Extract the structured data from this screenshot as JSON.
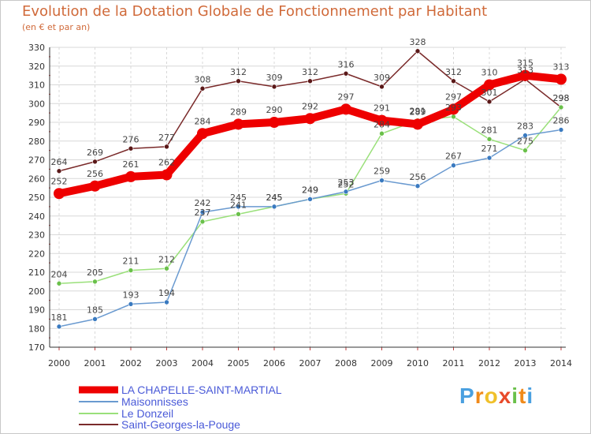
{
  "title": "Evolution de la Dotation Globale de Fonctionnement par Habitant",
  "subtitle": "(en € et par an)",
  "logo": {
    "text": "Proxiti",
    "letters": [
      "P",
      "r",
      "o",
      "x",
      "i",
      "t",
      "i"
    ],
    "colors": [
      "#4aa0e0",
      "#f08a1a",
      "#f0c02a",
      "#e84a2a",
      "#6ac04a",
      "#f08a1a",
      "#4aa0e0"
    ]
  },
  "chart_data": {
    "type": "line",
    "title": "Evolution de la Dotation Globale de Fonctionnement par Habitant",
    "subtitle": "(en € et par an)",
    "xlabel": "",
    "ylabel": "",
    "grid": true,
    "ylim": [
      170,
      330
    ],
    "yticks": [
      "170",
      "180",
      "190",
      "200",
      "210",
      "220",
      "230",
      "240",
      "250",
      "260",
      "270",
      "280",
      "290",
      "300",
      "310",
      "320",
      "330"
    ],
    "categories": [
      "2000",
      "2001",
      "2002",
      "2003",
      "2004",
      "2005",
      "2006",
      "2007",
      "2008",
      "2009",
      "2010",
      "2011",
      "2012",
      "2013",
      "2014"
    ],
    "series": [
      {
        "name": "Saint-Georges-la-Pouge",
        "color": "#7a2a2a",
        "dot": "#5a1818",
        "values": [
          264,
          269,
          276,
          277,
          308,
          312,
          309,
          312,
          316,
          309,
          328,
          312,
          301,
          313,
          298
        ],
        "labels": [
          "264",
          "269",
          "276",
          "277",
          "308",
          "312",
          "309",
          "312",
          "316",
          "309",
          "328",
          "312",
          "301",
          "313",
          "298"
        ]
      },
      {
        "name": "Le Donzeil",
        "color": "#9ae07a",
        "dot": "#6ac04a",
        "values": [
          204,
          205,
          211,
          212,
          237,
          241,
          245,
          249,
          252,
          284,
          291,
          293,
          281,
          275,
          298
        ],
        "labels": [
          "204",
          "205",
          "211",
          "212",
          "237",
          "241",
          "245",
          "249",
          "252",
          "284",
          "291",
          "293",
          "281",
          "275",
          "298"
        ]
      },
      {
        "name": "Maisonnisses",
        "color": "#6a9ad0",
        "dot": "#3a7ac0",
        "values": [
          181,
          185,
          193,
          194,
          242,
          245,
          245,
          249,
          253,
          259,
          256,
          267,
          271,
          283,
          286
        ],
        "labels": [
          "181",
          "185",
          "193",
          "194",
          "242",
          "245",
          "245",
          "249",
          "253",
          "259",
          "256",
          "267",
          "271",
          "283",
          "286"
        ]
      },
      {
        "name": "LA CHAPELLE-SAINT-MARTIAL",
        "color": "#ee0000",
        "dot": "#ee0000",
        "values": [
          252,
          256,
          261,
          262,
          284,
          289,
          290,
          292,
          297,
          291,
          289,
          297,
          310,
          315,
          313
        ],
        "labels": [
          "252",
          "256",
          "261",
          "262",
          "284",
          "289",
          "290",
          "292",
          "297",
          "291",
          "289",
          "297",
          "310",
          "315",
          "313"
        ]
      }
    ],
    "legend": {
      "placement": "bottom-left",
      "entries": [
        "LA CHAPELLE-SAINT-MARTIAL",
        "Maisonnisses",
        "Le Donzeil",
        "Saint-Georges-la-Pouge"
      ]
    }
  }
}
